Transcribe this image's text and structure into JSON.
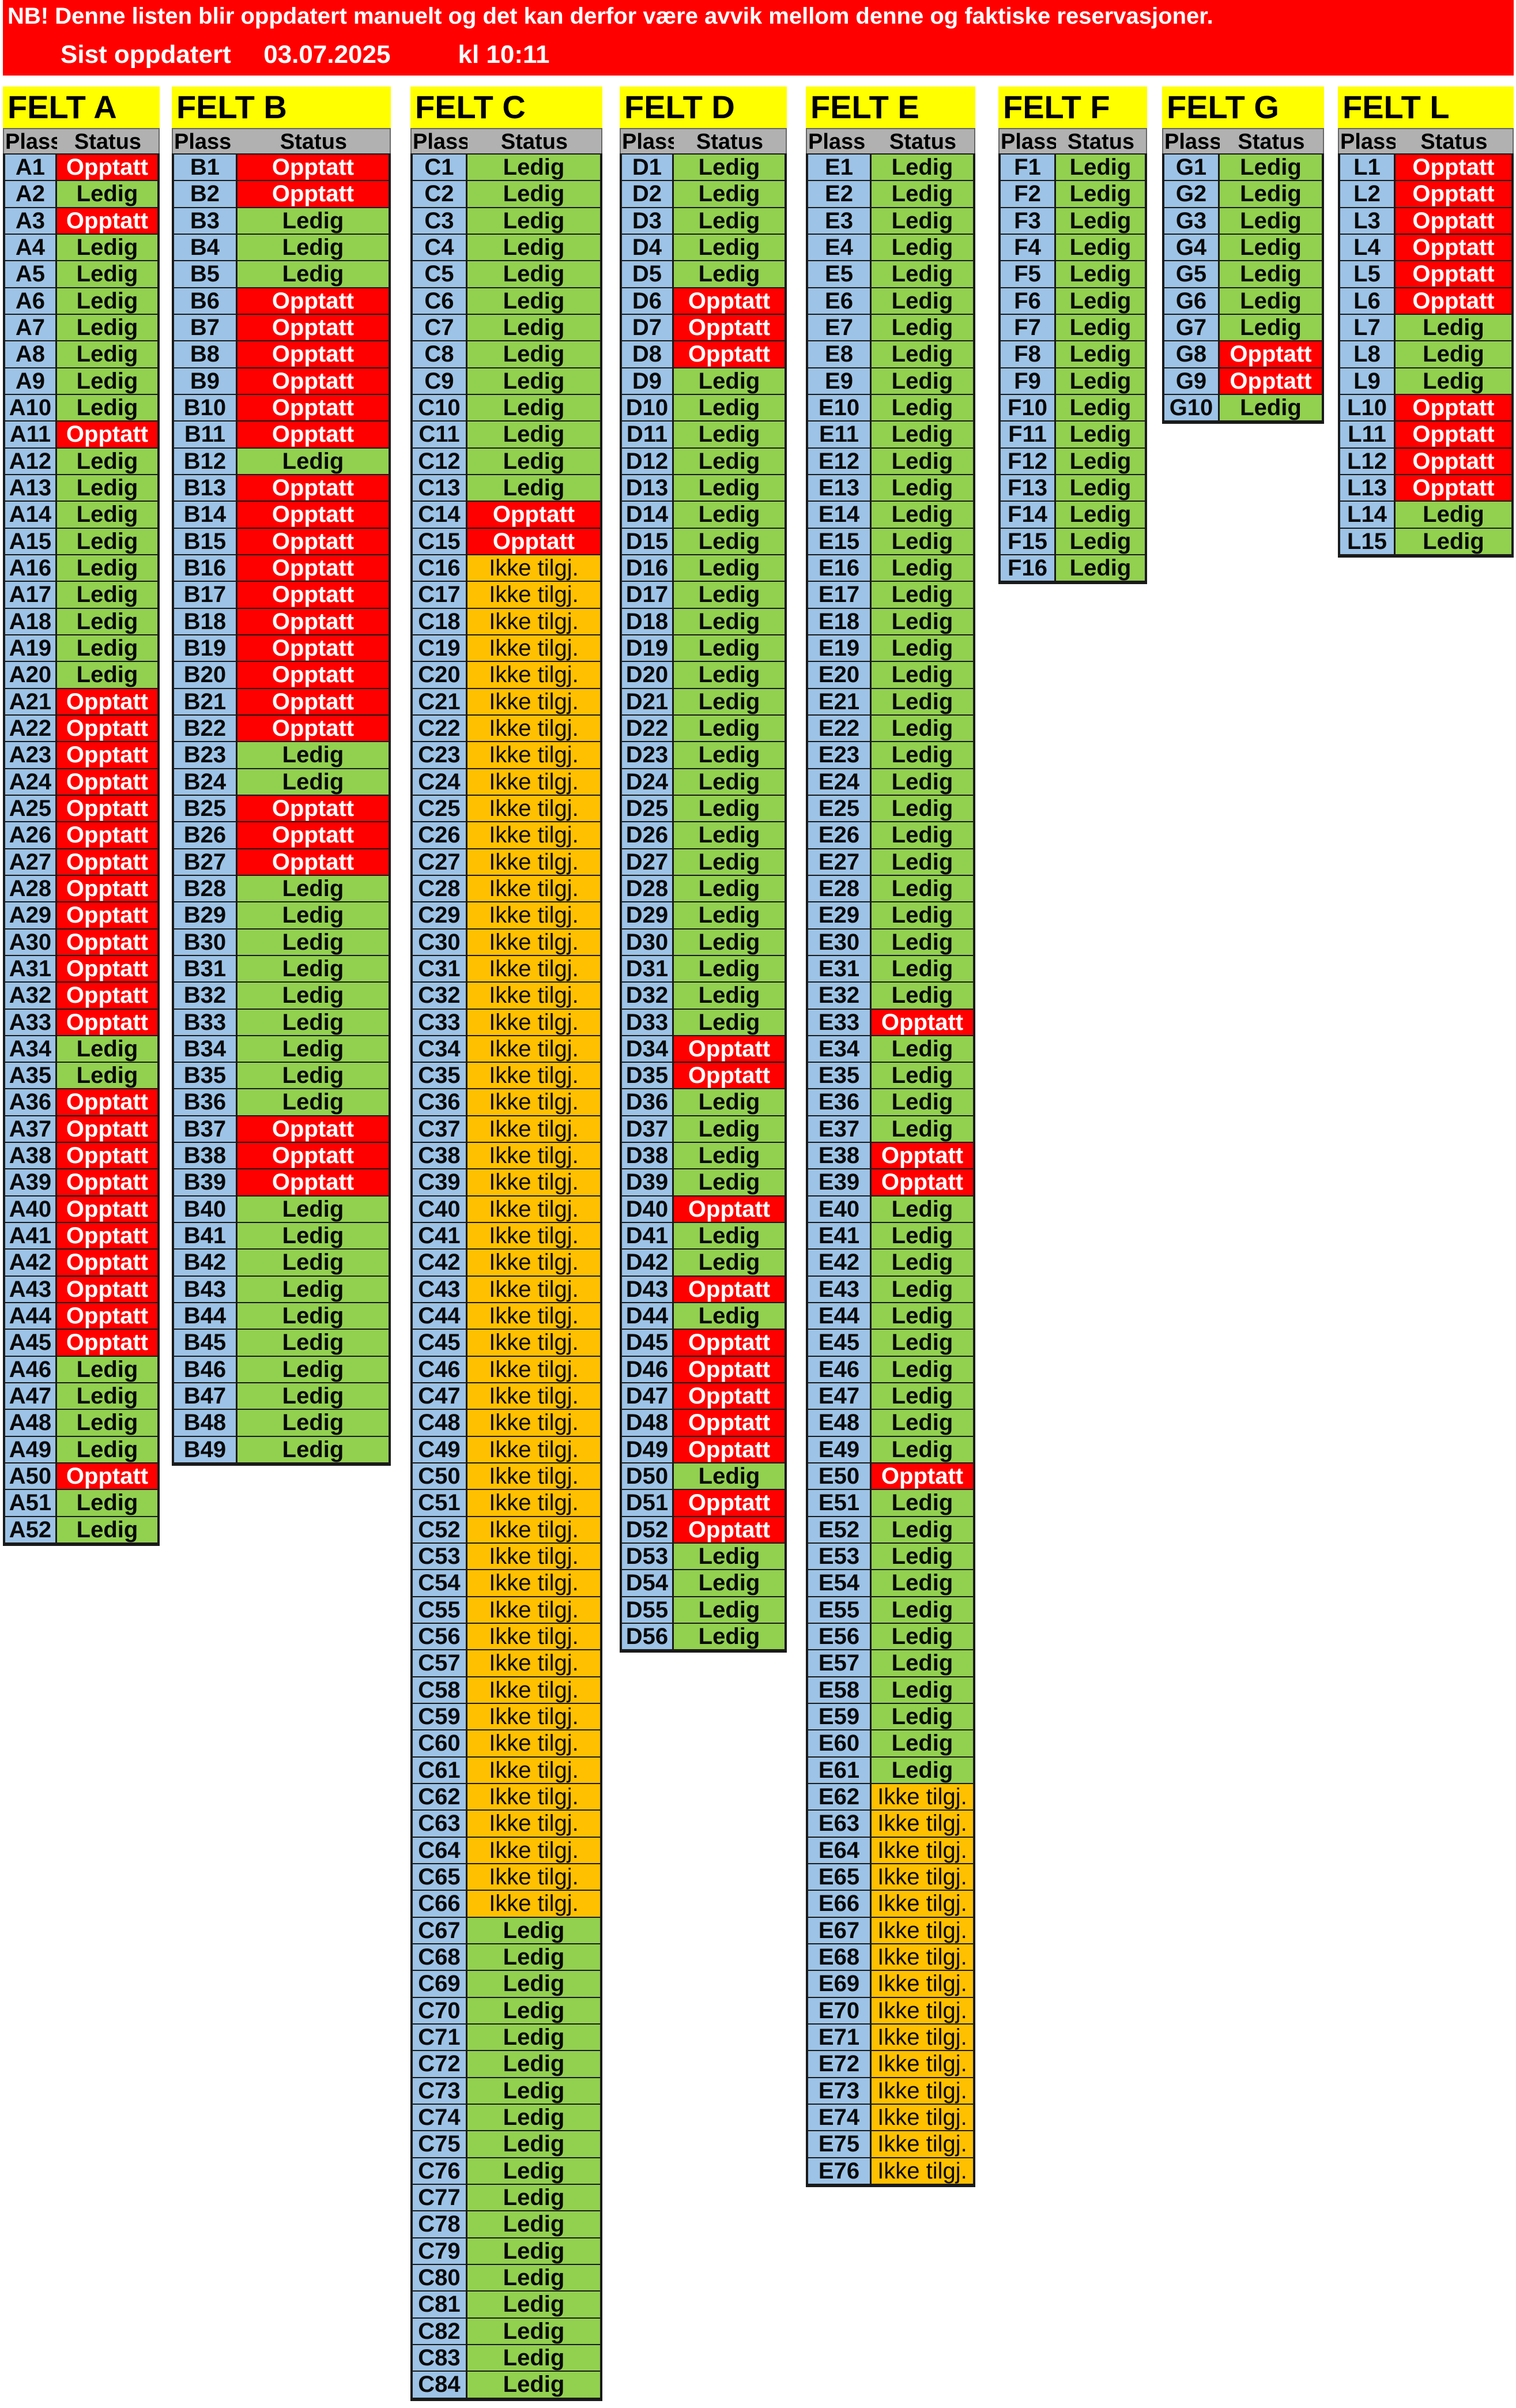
{
  "notice": "NB! Denne listen blir oppdatert manuelt og det kan derfor være avvik mellom denne og faktiske reservasjoner.",
  "updated": {
    "label": "Sist oppdatert",
    "date": "03.07.2025",
    "time": "kl 10:11"
  },
  "column_headers": {
    "plass": "Plass",
    "status": "Status"
  },
  "status_labels": {
    "L": "Ledig",
    "O": "Opptatt",
    "I": "Ikke tilgj."
  },
  "colors": {
    "ledig": "#92d050",
    "opptatt": "#ff0000",
    "ikke": "#ffc000",
    "plass": "#9dc3e6",
    "title": "#ffff00",
    "header": "#b1b1b1",
    "banner": "#ff0000"
  },
  "fields": [
    {
      "id": "a",
      "title": "FELT A",
      "prefix": "A",
      "status": "OLOLLLLLLLOLLLLLLLLLOOOOOOOOOOOOOLLOOOOOOOOOOLLLLOLL"
    },
    {
      "id": "b",
      "title": "FELT B",
      "prefix": "B",
      "status": "OOLLLOOOOOOLOOOOOOOOOOLLOOOLLLLLLLLLOOOLLLLLLLLLL"
    },
    {
      "id": "c",
      "title": "FELT C",
      "prefix": "C",
      "status": "LLLLLLLLLLLLLOOIIIIIIIIIIIIIIIIIIIIIIIIIIIIIIIIIIIIIIIIIIIIIIIIIIILLLLLLLLLLLLLLLLLL"
    },
    {
      "id": "d",
      "title": "FELT D",
      "prefix": "D",
      "status": "LLLLLOOOLLLLLLLLLLLLLLLLLLLLLLLLLOOLLLLOLLOLOOOOOLOOLLLL"
    },
    {
      "id": "e",
      "title": "FELT E",
      "prefix": "E",
      "status": "LLLLLLLLLLLLLLLLLLLLLLLLLLLLLLLLOLLLLOOLLLLLLLLLLOLLLLLLLLLLLIIIIIIIIIIIIIII"
    },
    {
      "id": "f",
      "title": "FELT F",
      "prefix": "F",
      "status": "LLLLLLLLLLLLLLLL"
    },
    {
      "id": "g",
      "title": "FELT G",
      "prefix": "G",
      "status": "LLLLLLLOOL"
    },
    {
      "id": "l",
      "title": "FELT L",
      "prefix": "L",
      "status": "OOOOOOLLLOOOOLL"
    }
  ]
}
